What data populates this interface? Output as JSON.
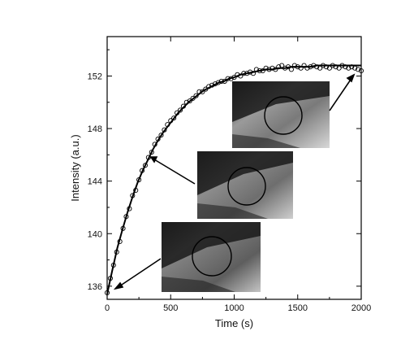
{
  "chart_data": {
    "type": "scatter",
    "title": "",
    "xlabel": "Time (s)",
    "ylabel": "Intensity (a.u.)",
    "xlim": [
      0,
      2000
    ],
    "ylim": [
      135,
      155
    ],
    "xticks": [
      0,
      500,
      1000,
      1500,
      2000
    ],
    "yticks": [
      136,
      140,
      144,
      148,
      152
    ],
    "grid": false,
    "legend": "none",
    "series": [
      {
        "x": [
          0,
          25,
          50,
          75,
          100,
          125,
          150,
          175,
          200,
          225,
          250,
          275,
          300,
          325,
          350,
          375,
          400,
          425,
          450,
          475,
          500,
          525,
          550,
          575,
          600,
          625,
          650,
          675,
          700,
          725,
          750,
          775,
          800,
          825,
          850,
          875,
          900,
          925,
          950,
          975,
          1000,
          1025,
          1050,
          1075,
          1100,
          1125,
          1150,
          1175,
          1200,
          1225,
          1250,
          1275,
          1300,
          1325,
          1350,
          1375,
          1400,
          1425,
          1450,
          1475,
          1500,
          1525,
          1550,
          1575,
          1600,
          1625,
          1650,
          1675,
          1700,
          1725,
          1750,
          1775,
          1800,
          1825,
          1850,
          1875,
          1900,
          1925,
          1950,
          1975,
          2000
        ],
        "values": [
          135.5,
          136.6,
          137.6,
          138.6,
          139.4,
          140.4,
          141.3,
          141.9,
          142.9,
          143.3,
          144.1,
          144.8,
          145.2,
          145.8,
          146.2,
          146.8,
          147.2,
          147.5,
          147.9,
          148.3,
          148.6,
          148.8,
          149.2,
          149.4,
          149.7,
          150.0,
          150.1,
          150.3,
          150.5,
          150.8,
          150.8,
          151.0,
          151.2,
          151.3,
          151.4,
          151.5,
          151.6,
          151.6,
          151.8,
          151.8,
          151.9,
          152.1,
          152.0,
          152.2,
          152.2,
          152.3,
          152.2,
          152.5,
          152.4,
          152.4,
          152.6,
          152.5,
          152.6,
          152.5,
          152.7,
          152.8,
          152.6,
          152.7,
          152.5,
          152.8,
          152.7,
          152.6,
          152.8,
          152.6,
          152.7,
          152.8,
          152.7,
          152.6,
          152.8,
          152.7,
          152.6,
          152.8,
          152.7,
          152.6,
          152.8,
          152.7,
          152.6,
          152.7,
          152.6,
          152.5,
          152.4
        ]
      },
      {
        "type": "line",
        "x": [
          0,
          40,
          80,
          120,
          160,
          200,
          240,
          280,
          320,
          360,
          400,
          440,
          480,
          520,
          560,
          600,
          640,
          680,
          720,
          760,
          800,
          840,
          880,
          920,
          960,
          1000,
          1050,
          1100,
          1150,
          1200,
          1250,
          1300,
          1350,
          1400,
          1450,
          1500,
          1550,
          1600,
          1650,
          1700,
          1750,
          1800,
          1850,
          1900,
          1950,
          2000
        ],
        "values": [
          135.4,
          137.2,
          138.9,
          140.3,
          141.6,
          142.8,
          143.9,
          144.8,
          145.6,
          146.4,
          147.1,
          147.7,
          148.2,
          148.7,
          149.2,
          149.6,
          150.0,
          150.3,
          150.6,
          150.9,
          151.1,
          151.3,
          151.5,
          151.6,
          151.8,
          151.9,
          152.1,
          152.2,
          152.3,
          152.4,
          152.5,
          152.5,
          152.6,
          152.6,
          152.7,
          152.7,
          152.7,
          152.7,
          152.8,
          152.8,
          152.8,
          152.8,
          152.8,
          152.8,
          152.8,
          152.8
        ]
      }
    ]
  }
}
